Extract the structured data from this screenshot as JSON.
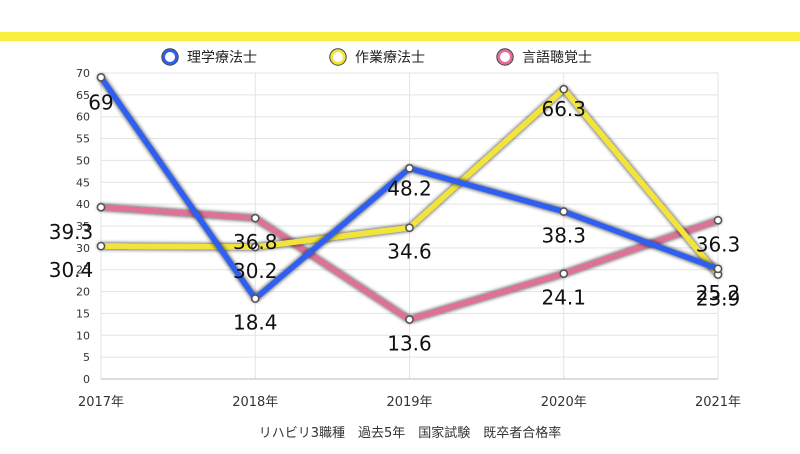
{
  "accent_bar_color": "#f7ef3b",
  "chart_data": {
    "type": "line",
    "title": "",
    "xlabel": "",
    "ylabel": "",
    "caption": "リハビリ3職種　過去5年　国家試験　既卒者合格率",
    "categories": [
      "2017年",
      "2018年",
      "2019年",
      "2020年",
      "2021年"
    ],
    "ylim": [
      0,
      70
    ],
    "yticks": [
      0,
      5,
      10,
      15,
      20,
      25,
      30,
      35,
      40,
      45,
      50,
      55,
      60,
      65,
      70
    ],
    "grid": true,
    "legend_position": "top",
    "series": [
      {
        "name": "理学療法士",
        "color": "#2f5ff0",
        "values": [
          69,
          18.4,
          48.2,
          38.3,
          25.2
        ]
      },
      {
        "name": "作業療法士",
        "color": "#f2e43a",
        "values": [
          30.4,
          30.2,
          34.6,
          66.3,
          23.9
        ]
      },
      {
        "name": "言語聴覚士",
        "color": "#df6f98",
        "values": [
          39.3,
          36.8,
          13.6,
          24.1,
          36.3
        ]
      }
    ],
    "data_labels": [
      {
        "series": 0,
        "index": 0,
        "text": "69"
      },
      {
        "series": 0,
        "index": 1,
        "text": "18.4"
      },
      {
        "series": 0,
        "index": 2,
        "text": "48.2"
      },
      {
        "series": 0,
        "index": 3,
        "text": "38.3"
      },
      {
        "series": 0,
        "index": 4,
        "text": "25.2"
      },
      {
        "series": 1,
        "index": 0,
        "text": "30.4"
      },
      {
        "series": 1,
        "index": 1,
        "text": "30.2"
      },
      {
        "series": 1,
        "index": 2,
        "text": "34.6"
      },
      {
        "series": 1,
        "index": 3,
        "text": "66.3"
      },
      {
        "series": 1,
        "index": 4,
        "text": "23.9"
      },
      {
        "series": 2,
        "index": 0,
        "text": "39.3"
      },
      {
        "series": 2,
        "index": 1,
        "text": "36.8"
      },
      {
        "series": 2,
        "index": 2,
        "text": "13.6"
      },
      {
        "series": 2,
        "index": 3,
        "text": "24.1"
      },
      {
        "series": 2,
        "index": 4,
        "text": "36.3"
      }
    ]
  }
}
